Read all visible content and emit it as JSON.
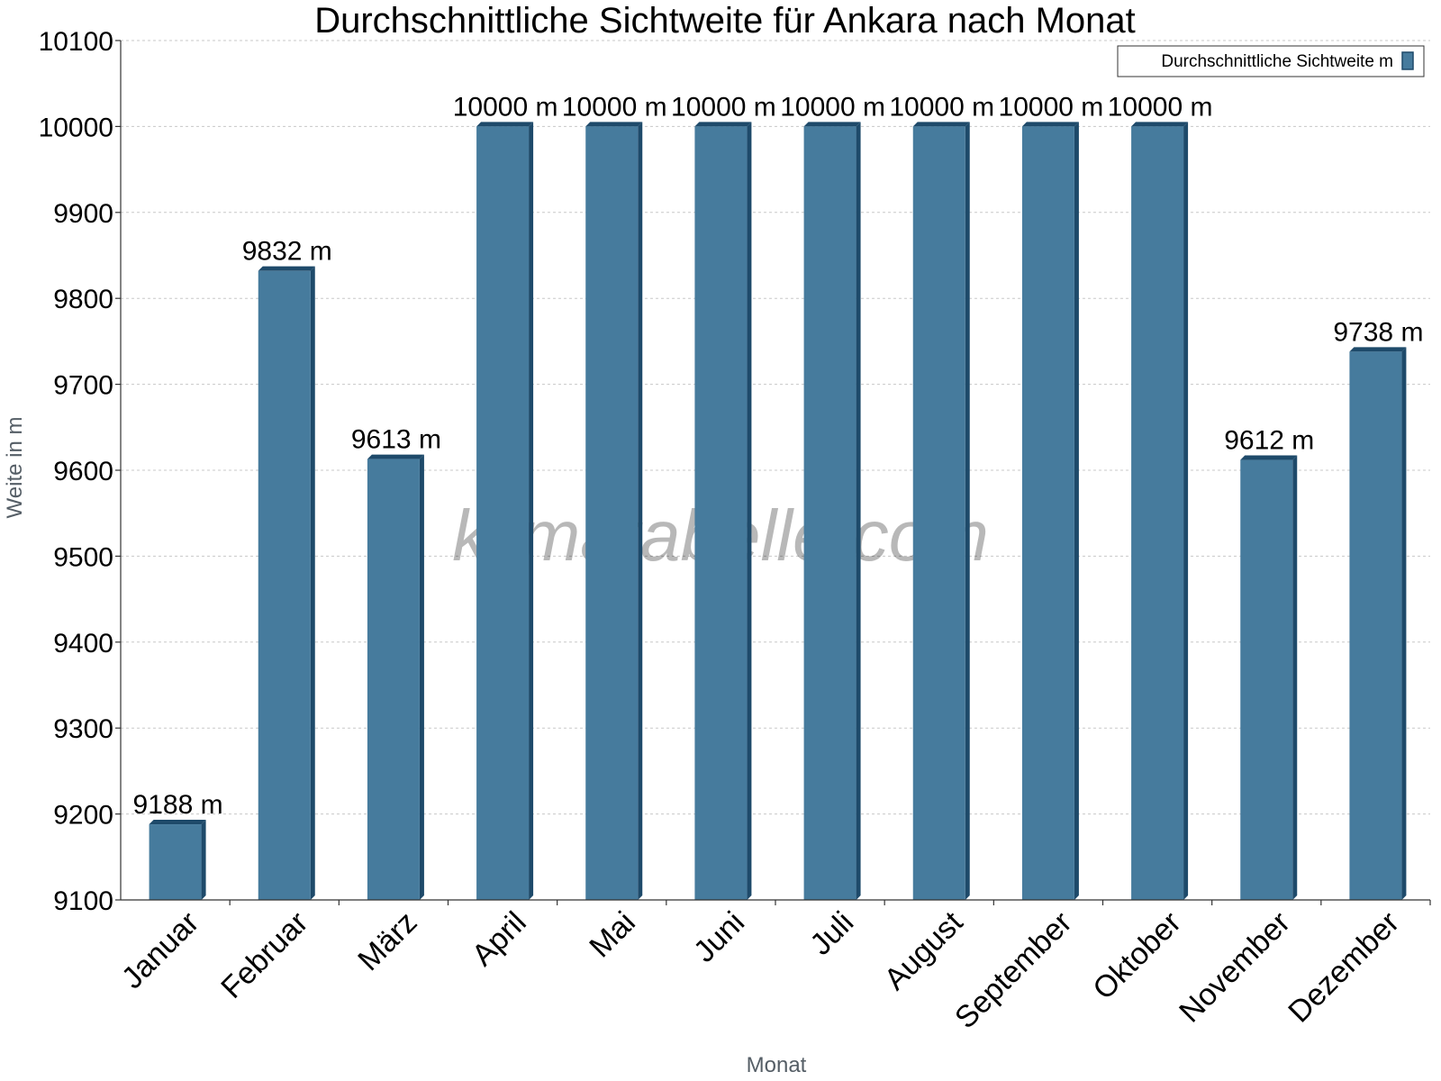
{
  "chart_data": {
    "type": "bar",
    "title": "Durchschnittliche Sichtweite für Ankara nach Monat",
    "xlabel": "Monat",
    "ylabel": "Weite in m",
    "ylim": [
      9100,
      10100
    ],
    "yticks": [
      9100,
      9200,
      9300,
      9400,
      9500,
      9600,
      9700,
      9800,
      9900,
      10000,
      10100
    ],
    "categories": [
      "Januar",
      "Februar",
      "März",
      "April",
      "Mai",
      "Juni",
      "Juli",
      "August",
      "September",
      "Oktober",
      "November",
      "Dezember"
    ],
    "series": [
      {
        "name": "Durchschnittliche Sichtweite m",
        "values": [
          9188,
          9832,
          9613,
          10000,
          10000,
          10000,
          10000,
          10000,
          10000,
          10000,
          9612,
          9738
        ],
        "value_labels": [
          "9188 m",
          "9832 m",
          "9613 m",
          "10000 m",
          "10000 m",
          "10000 m",
          "10000 m",
          "10000 m",
          "10000 m",
          "10000 m",
          "9612 m",
          "9738 m"
        ],
        "color": "#467b9d",
        "side_color": "#1e4a6a"
      }
    ],
    "legend_position": "top-right",
    "grid": true,
    "watermark": "klimatabelle.com"
  }
}
